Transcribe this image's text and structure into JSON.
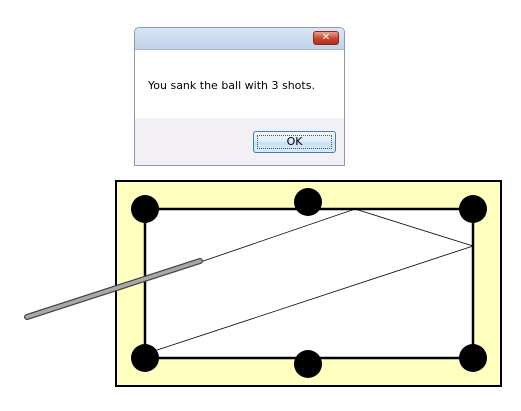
{
  "dialog": {
    "message": "You sank the ball with 3 shots.",
    "ok_label": "OK",
    "close_glyph": "✕"
  },
  "game": {
    "shots": 3,
    "table_border_color": "#ffffc0",
    "felt_color": "#ffffff",
    "pocket_color": "#000000",
    "cue_color": "#a0a0a0"
  }
}
